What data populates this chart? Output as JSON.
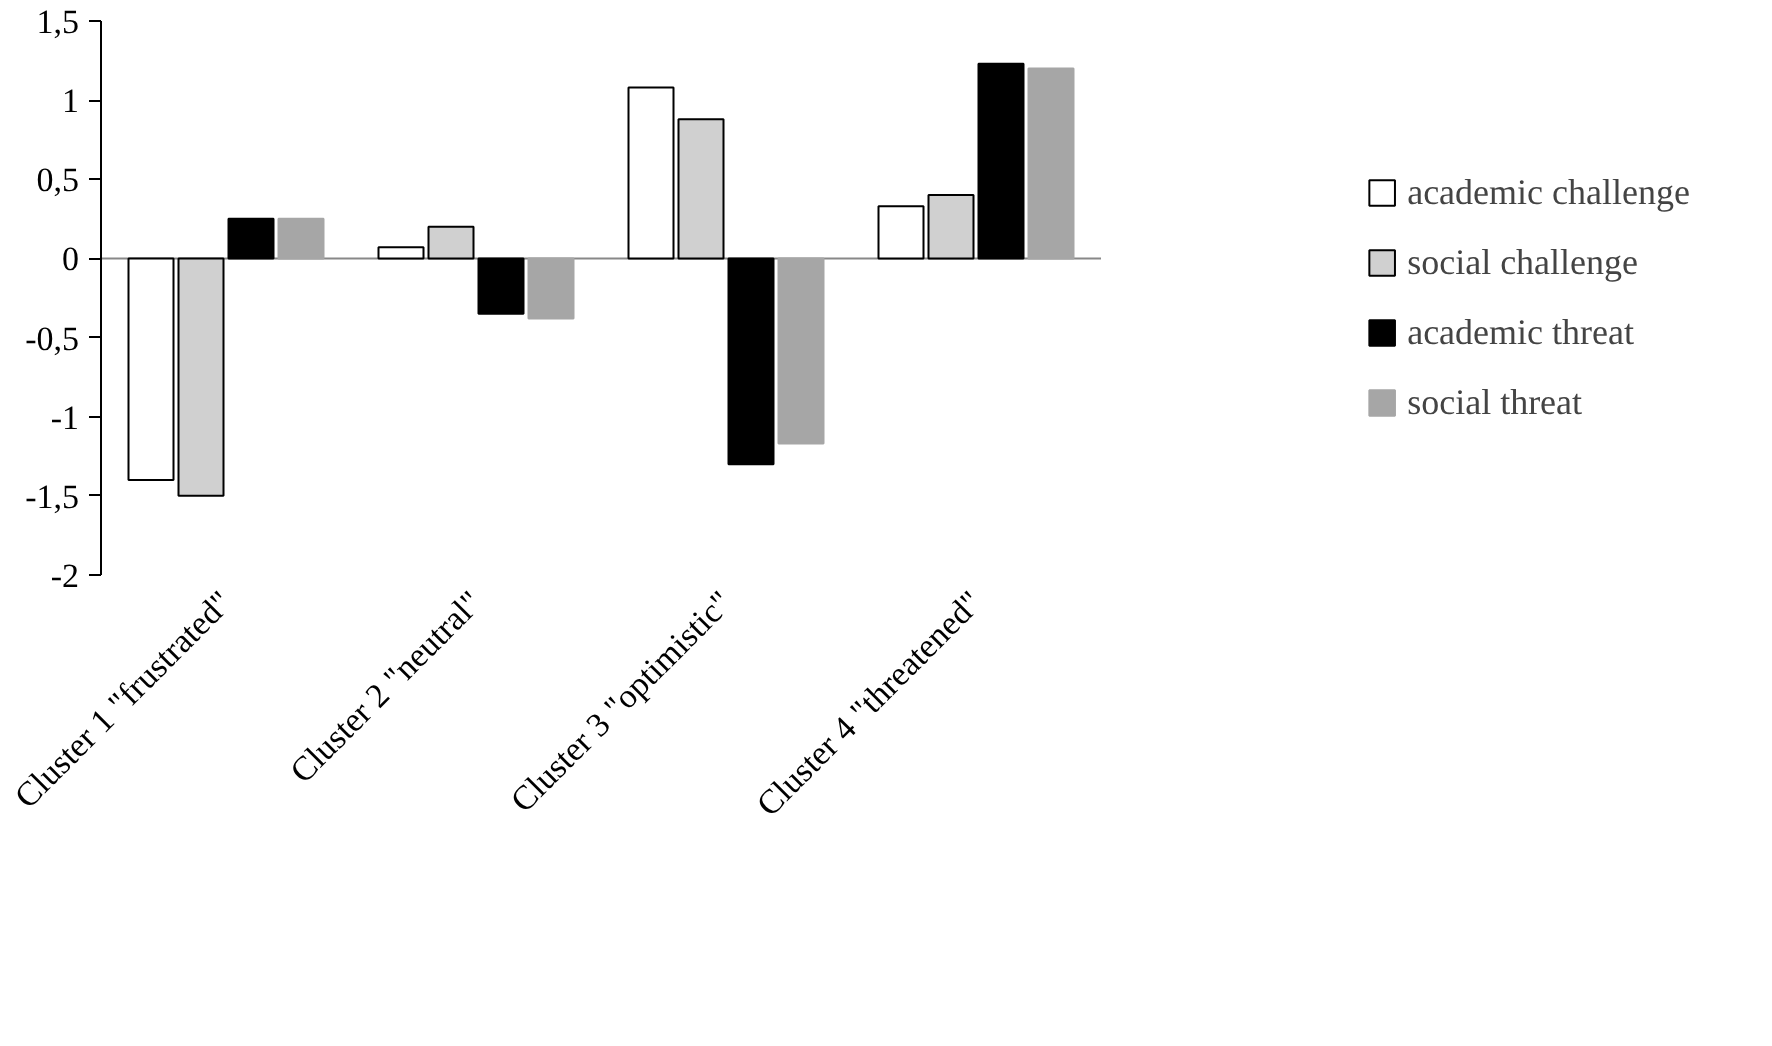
{
  "chart_data": {
    "type": "bar",
    "categories": [
      "Cluster 1 \"frustrated\"",
      "Cluster 2 \"neutral\"",
      "Cluster 3 \"optimistic\"",
      "Cluster 4 \"threatened\""
    ],
    "series": [
      {
        "name": "academic challenge",
        "color": "#ffffff",
        "values": [
          -1.4,
          0.07,
          1.08,
          0.33
        ]
      },
      {
        "name": "social challenge",
        "color": "#d0d0d0",
        "values": [
          -1.5,
          0.2,
          0.88,
          0.4
        ]
      },
      {
        "name": "academic threat",
        "color": "#000000",
        "values": [
          0.25,
          -0.35,
          -1.3,
          1.23
        ]
      },
      {
        "name": "social threat",
        "color": "#a6a6a6",
        "values": [
          0.25,
          -0.38,
          -1.17,
          1.2
        ]
      }
    ],
    "ylim": [
      -2,
      1.5
    ],
    "yticks": [
      {
        "value": -2,
        "label": "-2"
      },
      {
        "value": -1.5,
        "label": "-1,5"
      },
      {
        "value": -1,
        "label": "-1"
      },
      {
        "value": -0.5,
        "label": "-0,5"
      },
      {
        "value": 0,
        "label": "0"
      },
      {
        "value": 0.5,
        "label": "0,5"
      },
      {
        "value": 1,
        "label": "1"
      },
      {
        "value": 1.5,
        "label": "1,5"
      }
    ],
    "legend": "right"
  }
}
